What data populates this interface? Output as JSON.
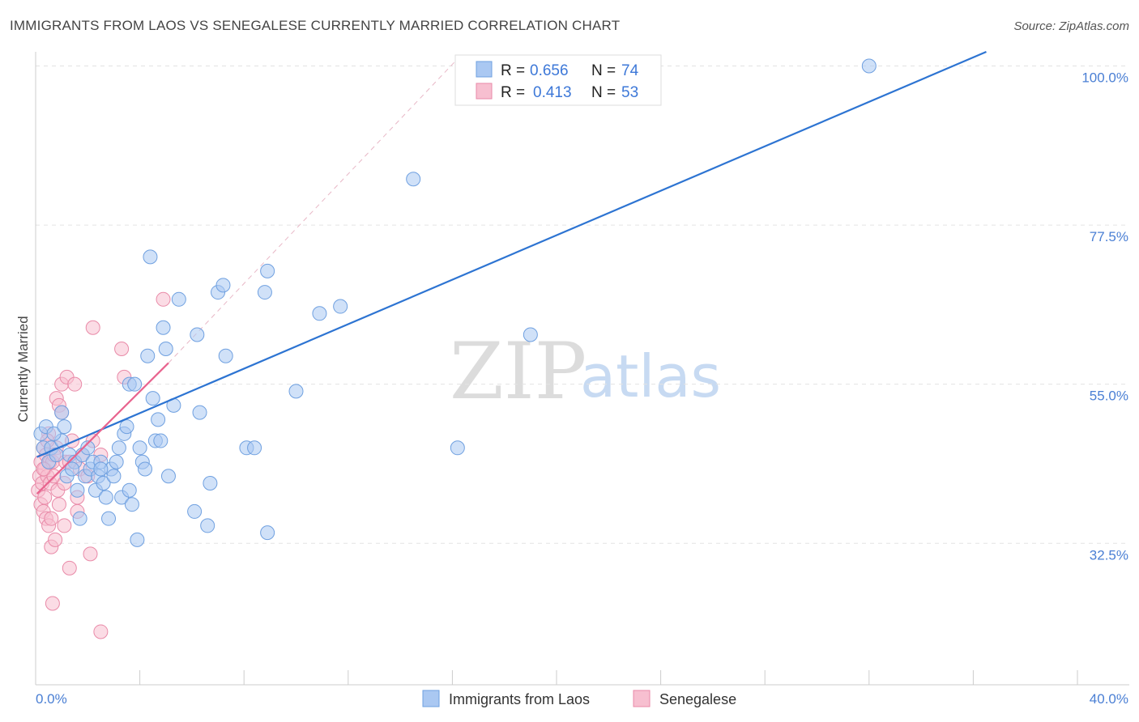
{
  "title": "IMMIGRANTS FROM LAOS VS SENEGALESE CURRENTLY MARRIED CORRELATION CHART",
  "source": "Source: ZipAtlas.com",
  "watermark": {
    "part1": "ZIP",
    "part2": "atlas"
  },
  "chart_data": {
    "type": "scatter",
    "title": "IMMIGRANTS FROM LAOS VS SENEGALESE CURRENTLY MARRIED CORRELATION CHART",
    "ylabel": "Currently Married",
    "xlim": [
      0,
      40
    ],
    "ylim": [
      12.5,
      102
    ],
    "x_tick_labels": [
      {
        "value": 0,
        "label": "0.0%"
      },
      {
        "value": 40,
        "label": "40.0%"
      }
    ],
    "y_ticks": [
      {
        "value": 32.5,
        "label": "32.5%"
      },
      {
        "value": 55.0,
        "label": "55.0%"
      },
      {
        "value": 77.5,
        "label": "77.5%"
      },
      {
        "value": 100.0,
        "label": "100.0%"
      }
    ],
    "colors": {
      "laos_fill": "#aac8f2",
      "laos_stroke": "#6fa0e0",
      "laos_line": "#2d74d2",
      "sen_fill": "#f7bfd0",
      "sen_stroke": "#e98aa8",
      "sen_line": "#e8638e",
      "grid": "#e3e3e3",
      "axis": "#cccccc"
    },
    "legend": [
      {
        "r_label": "R = ",
        "r_value": "0.656",
        "n_label": "N = ",
        "n_value": "74",
        "series": "Immigrants from Laos"
      },
      {
        "r_label": "R = ",
        "r_value": "0.413",
        "n_label": "N = ",
        "n_value": "53",
        "series": "Senegalese"
      }
    ],
    "series": [
      {
        "name": "Immigrants from Laos",
        "trend": {
          "x": [
            0.05,
            36.5
          ],
          "y": [
            44.7,
            102
          ]
        },
        "points": [
          [
            0.2,
            48
          ],
          [
            0.3,
            46
          ],
          [
            0.5,
            44
          ],
          [
            0.6,
            46
          ],
          [
            0.8,
            45
          ],
          [
            1.0,
            47
          ],
          [
            0.4,
            49
          ],
          [
            0.7,
            48
          ],
          [
            1.1,
            49
          ],
          [
            1.0,
            51
          ],
          [
            1.3,
            45
          ],
          [
            1.5,
            44
          ],
          [
            1.2,
            42
          ],
          [
            1.4,
            43
          ],
          [
            1.6,
            40
          ],
          [
            1.7,
            36
          ],
          [
            1.8,
            45
          ],
          [
            1.9,
            42
          ],
          [
            2.0,
            46
          ],
          [
            2.1,
            43
          ],
          [
            2.2,
            44
          ],
          [
            2.3,
            40
          ],
          [
            2.4,
            42
          ],
          [
            2.5,
            44
          ],
          [
            2.6,
            41
          ],
          [
            2.7,
            39
          ],
          [
            2.8,
            36
          ],
          [
            2.9,
            43
          ],
          [
            3.0,
            42
          ],
          [
            3.1,
            44
          ],
          [
            3.2,
            46
          ],
          [
            3.3,
            39
          ],
          [
            3.4,
            48
          ],
          [
            3.5,
            49
          ],
          [
            3.6,
            40
          ],
          [
            3.7,
            38
          ],
          [
            3.6,
            55
          ],
          [
            3.8,
            55
          ],
          [
            3.9,
            33
          ],
          [
            4.0,
            46
          ],
          [
            4.1,
            44
          ],
          [
            4.2,
            43
          ],
          [
            4.3,
            59
          ],
          [
            4.4,
            73
          ],
          [
            4.5,
            53
          ],
          [
            4.6,
            47
          ],
          [
            4.7,
            50
          ],
          [
            4.8,
            47
          ],
          [
            4.9,
            63
          ],
          [
            5.0,
            60
          ],
          [
            5.1,
            42
          ],
          [
            5.3,
            52
          ],
          [
            5.5,
            67
          ],
          [
            6.1,
            37
          ],
          [
            6.2,
            62
          ],
          [
            6.3,
            51
          ],
          [
            6.6,
            35
          ],
          [
            6.7,
            41
          ],
          [
            7.0,
            68
          ],
          [
            7.2,
            69
          ],
          [
            7.3,
            59
          ],
          [
            8.1,
            46
          ],
          [
            8.4,
            46
          ],
          [
            8.8,
            68
          ],
          [
            8.9,
            71
          ],
          [
            8.9,
            34
          ],
          [
            10.0,
            54
          ],
          [
            10.9,
            65
          ],
          [
            11.7,
            66
          ],
          [
            14.5,
            84
          ],
          [
            16.2,
            46
          ],
          [
            19.0,
            62
          ],
          [
            32.0,
            100
          ],
          [
            2.5,
            43
          ]
        ]
      },
      {
        "name": "Senegalese",
        "trend": {
          "x": [
            0.05,
            5.1
          ],
          "y": [
            39.5,
            58
          ]
        },
        "points": [
          [
            0.1,
            40
          ],
          [
            0.15,
            42
          ],
          [
            0.2,
            44
          ],
          [
            0.2,
            38
          ],
          [
            0.25,
            41
          ],
          [
            0.3,
            46
          ],
          [
            0.3,
            37
          ],
          [
            0.35,
            43
          ],
          [
            0.35,
            39
          ],
          [
            0.4,
            45
          ],
          [
            0.4,
            36
          ],
          [
            0.45,
            42
          ],
          [
            0.5,
            48
          ],
          [
            0.5,
            35
          ],
          [
            0.55,
            44
          ],
          [
            0.55,
            41
          ],
          [
            0.6,
            36
          ],
          [
            0.6,
            32
          ],
          [
            0.65,
            44
          ],
          [
            0.65,
            24
          ],
          [
            0.7,
            42
          ],
          [
            0.75,
            33
          ],
          [
            0.8,
            53
          ],
          [
            0.8,
            46
          ],
          [
            0.85,
            40
          ],
          [
            0.9,
            52
          ],
          [
            1.0,
            51
          ],
          [
            1.0,
            55
          ],
          [
            1.1,
            35
          ],
          [
            1.1,
            41
          ],
          [
            1.15,
            44
          ],
          [
            1.2,
            56
          ],
          [
            1.3,
            29
          ],
          [
            1.4,
            47
          ],
          [
            1.5,
            55
          ],
          [
            1.6,
            39
          ],
          [
            1.6,
            37
          ],
          [
            1.7,
            43
          ],
          [
            1.8,
            45
          ],
          [
            2.0,
            42
          ],
          [
            2.1,
            31
          ],
          [
            2.2,
            63
          ],
          [
            2.2,
            47
          ],
          [
            2.5,
            20
          ],
          [
            2.5,
            45
          ],
          [
            3.3,
            60
          ],
          [
            3.4,
            56
          ],
          [
            4.9,
            67
          ],
          [
            0.3,
            43
          ],
          [
            0.45,
            47
          ],
          [
            0.7,
            45
          ],
          [
            0.9,
            38
          ],
          [
            1.3,
            44
          ]
        ]
      }
    ]
  },
  "bottom_legend": [
    {
      "label": "Immigrants from Laos"
    },
    {
      "label": "Senegalese"
    }
  ]
}
